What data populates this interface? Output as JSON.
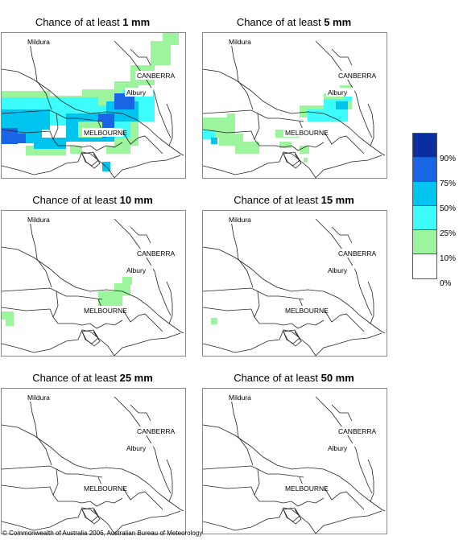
{
  "panels": [
    {
      "title_prefix": "Chance of at least ",
      "amount": "1 mm"
    },
    {
      "title_prefix": "Chance of at least ",
      "amount": "5 mm"
    },
    {
      "title_prefix": "Chance of at least ",
      "amount": "10 mm"
    },
    {
      "title_prefix": "Chance of at least ",
      "amount": "15 mm"
    },
    {
      "title_prefix": "Chance of at least ",
      "amount": "25 mm"
    },
    {
      "title_prefix": "Chance of at least ",
      "amount": "50 mm"
    }
  ],
  "places": {
    "mildura": "Mildura",
    "canberra": "CANBERRA",
    "albury": "Albury",
    "melbourne": "MELBOURNE"
  },
  "legend": {
    "labels": [
      "90%",
      "75%",
      "50%",
      "25%",
      "10%",
      "0%"
    ],
    "colors": [
      "#0a2ea0",
      "#1a64e6",
      "#00c4f0",
      "#3cfcfc",
      "#9cf59c",
      "#ffffff"
    ]
  },
  "footer": "© Commonwealth of Australia 2006, Australian Bureau of Meteorology"
}
